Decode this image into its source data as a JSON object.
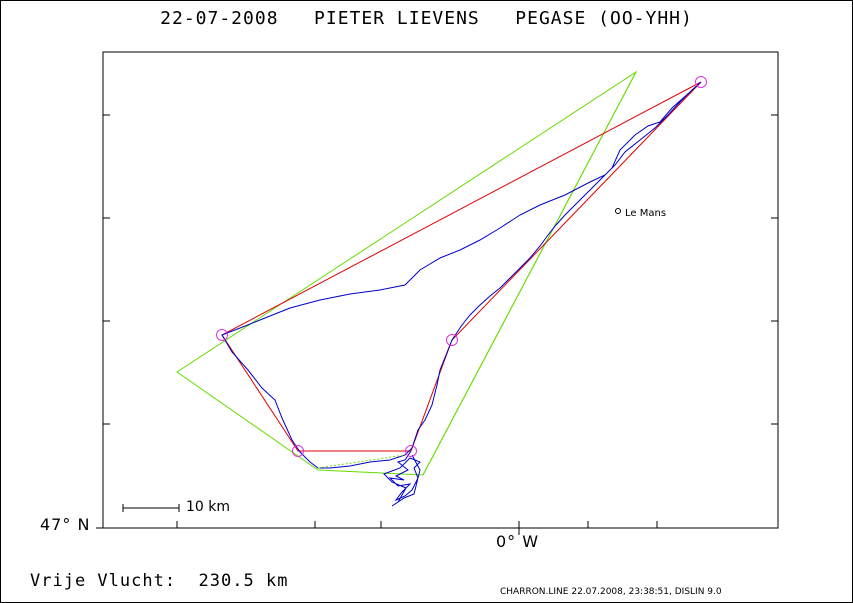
{
  "header": {
    "date": "22-07-2008",
    "pilot": "PIETER LIEVENS",
    "glider": "PEGASE (OO-YHH)"
  },
  "map": {
    "latitude_label": "47° N",
    "longitude_label": "0° W",
    "scale_label": "10 km",
    "city_label": "Le Mans",
    "colors": {
      "frame": "#000000",
      "flight_track": "#0000cc",
      "task_route": "#e00000",
      "sector_triangle": "#66dd00",
      "turnpoints": "#dd33dd"
    }
  },
  "stats": {
    "distance_label": "Vrije Vlucht:",
    "distance_value": "230.5 km"
  },
  "footer": {
    "info": "CHARRON.LINE 22.07.2008, 23:38:51, DISLIN 9.0"
  }
}
